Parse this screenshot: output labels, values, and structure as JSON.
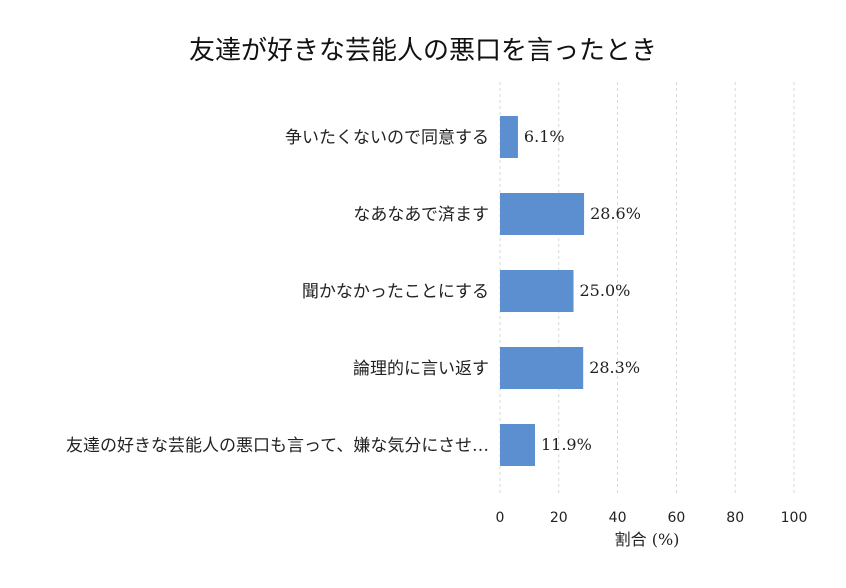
{
  "chart_data": {
    "type": "bar",
    "orientation": "horizontal",
    "title": "友達が好きな芸能人の悪口を言ったとき",
    "categories": [
      "争いたくないので同意する",
      "なあなあで済ます",
      "聞かなかったことにする",
      "論理的に言い返す",
      "友達の好きな芸能人の悪口も言って、嫌な気分にさせ…"
    ],
    "values": [
      6.1,
      28.6,
      25.0,
      28.3,
      11.9
    ],
    "value_labels": [
      "6.1%",
      "28.6%",
      "25.0%",
      "28.3%",
      "11.9%"
    ],
    "xlabel": "割合 (%)",
    "ylabel": "",
    "xlim": [
      0,
      100
    ],
    "xticks": [
      0,
      20,
      40,
      60,
      80,
      100
    ],
    "grid": "x-dashed",
    "bar_color": "#5b8fd0"
  }
}
